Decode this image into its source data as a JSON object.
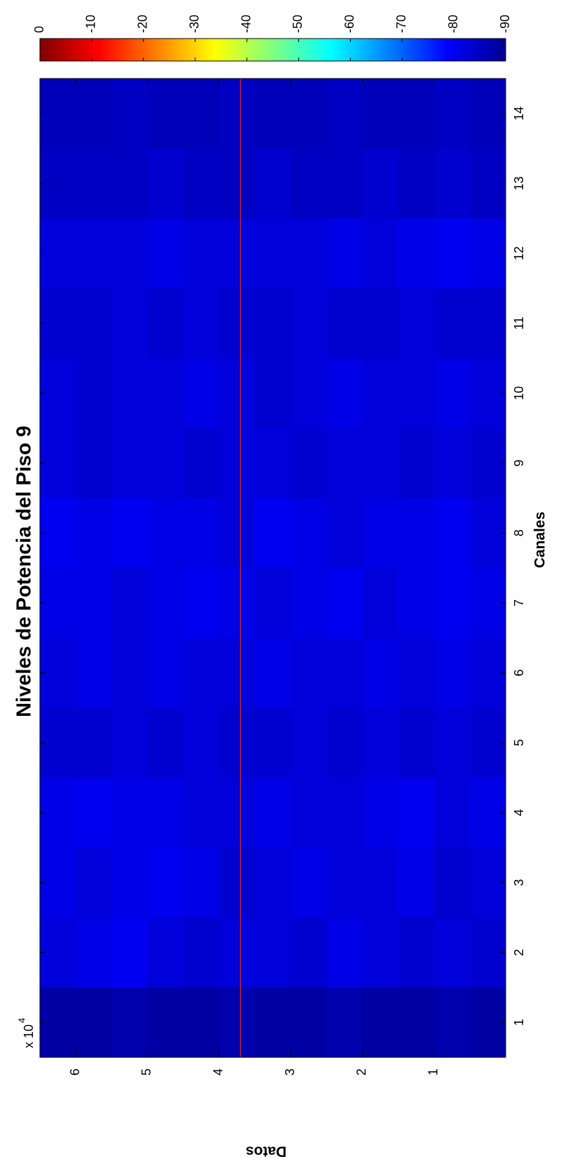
{
  "chart_data": {
    "type": "heatmap",
    "title": "Niveles de Potencia del Piso 9",
    "x_label": "Canales",
    "y_label": "Datos",
    "y_scale_text": "x 10",
    "y_scale_exponent": "4",
    "x": [
      1,
      2,
      3,
      4,
      5,
      6,
      7,
      8,
      9,
      10,
      11,
      12,
      13,
      14
    ],
    "xlim": [
      0.5,
      14.5
    ],
    "xticks": [
      1,
      2,
      3,
      4,
      5,
      6,
      7,
      8,
      9,
      10,
      11,
      12,
      13,
      14
    ],
    "ylim": [
      0,
      6.5
    ],
    "yticks": [
      1,
      2,
      3,
      4,
      5,
      6
    ],
    "z": [
      [
        -87,
        -86,
        -87,
        -87,
        -86,
        -87,
        -87,
        -86,
        -87,
        -87,
        -86,
        -87,
        -87
      ],
      [
        -83,
        -82,
        -83,
        -82,
        -81,
        -83,
        -82,
        -82,
        -83,
        -82,
        -80,
        -81,
        -82
      ],
      [
        -82,
        -83,
        -81,
        -82,
        -82,
        -81,
        -82,
        -83,
        -81,
        -80,
        -81,
        -82,
        -81
      ],
      [
        -81,
        -82,
        -80,
        -81,
        -82,
        -82,
        -81,
        -82,
        -82,
        -81,
        -81,
        -80,
        -81
      ],
      [
        -83,
        -82,
        -83,
        -82,
        -83,
        -82,
        -83,
        -83,
        -82,
        -83,
        -82,
        -83,
        -83
      ],
      [
        -82,
        -81,
        -82,
        -81,
        -82,
        -82,
        -81,
        -82,
        -82,
        -81,
        -82,
        -81,
        -82
      ],
      [
        -81,
        -80,
        -81,
        -82,
        -80,
        -81,
        -82,
        -81,
        -80,
        -81,
        -82,
        -81,
        -81
      ],
      [
        -82,
        -80,
        -81,
        -81,
        -82,
        -81,
        -80,
        -82,
        -81,
        -81,
        -80,
        -81,
        -80
      ],
      [
        -83,
        -82,
        -83,
        -82,
        -82,
        -83,
        -82,
        -82,
        -83,
        -82,
        -82,
        -83,
        -82
      ],
      [
        -82,
        -81,
        -82,
        -82,
        -81,
        -82,
        -83,
        -82,
        -81,
        -82,
        -82,
        -83,
        -82
      ],
      [
        -83,
        -83,
        -82,
        -83,
        -83,
        -82,
        -83,
        -83,
        -82,
        -83,
        -82,
        -83,
        -83
      ],
      [
        -81,
        -80,
        -81,
        -82,
        -81,
        -82,
        -82,
        -82,
        -82,
        -81,
        -82,
        -82,
        -82
      ],
      [
        -84,
        -83,
        -84,
        -83,
        -84,
        -84,
        -83,
        -84,
        -84,
        -83,
        -84,
        -84,
        -84
      ],
      [
        -85,
        -84,
        -85,
        -85,
        -84,
        -85,
        -85,
        -84,
        -85,
        -85,
        -84,
        -85,
        -85
      ]
    ],
    "colormap": "jet",
    "clim": [
      -90,
      0
    ],
    "cticks": [
      0,
      -10,
      -20,
      -30,
      -40,
      -50,
      -60,
      -70,
      -80,
      -90
    ],
    "reference_line": {
      "value": 3.7,
      "color": "#c0282a"
    }
  }
}
